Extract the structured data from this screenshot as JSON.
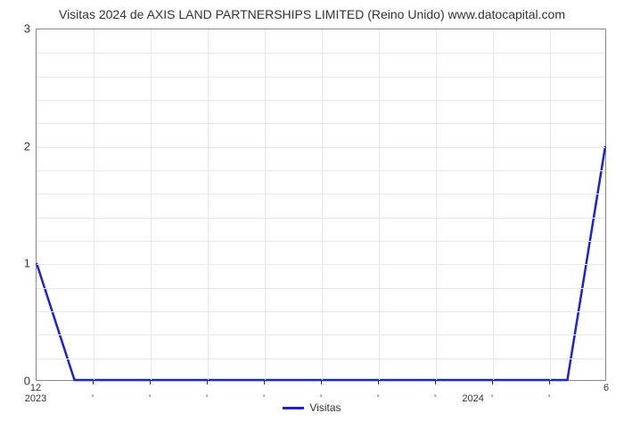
{
  "chart": {
    "type": "line",
    "title": "Visitas 2024 de AXIS LAND PARTNERSHIPS LIMITED (Reino Unido) www.datocapital.com",
    "title_fontsize": 14,
    "title_color": "#333333",
    "background_color": "#ffffff",
    "plot_border_color": "#888888",
    "grid_color": "#e8e8e8",
    "line_color": "#1922d6",
    "line_width": 2.5,
    "ylim": [
      0,
      3
    ],
    "ytick_step": 1,
    "yticks": [
      0,
      1,
      2,
      3
    ],
    "y_minor_per_major": 5,
    "x_index_range": [
      0,
      30
    ],
    "x_major_ticks": [
      {
        "idx": 0,
        "label_top": "12",
        "label_bottom": "2023"
      },
      {
        "idx": 23,
        "label_top": "",
        "label_bottom": "2024"
      },
      {
        "idx": 30,
        "label_top": "6",
        "label_bottom": ""
      }
    ],
    "x_minor_tick_idxs": [
      3,
      6,
      9,
      12,
      15,
      18,
      21,
      24,
      27
    ],
    "series": {
      "label": "Visitas",
      "points": [
        {
          "x": 0,
          "y": 1.0
        },
        {
          "x": 2,
          "y": 0.0
        },
        {
          "x": 3,
          "y": 0.0
        },
        {
          "x": 27,
          "y": 0.0
        },
        {
          "x": 28,
          "y": 0.0
        },
        {
          "x": 30,
          "y": 2.0
        }
      ]
    },
    "legend_label": "Visitas",
    "tick_fontsize": 12,
    "tick_color": "#333333"
  }
}
